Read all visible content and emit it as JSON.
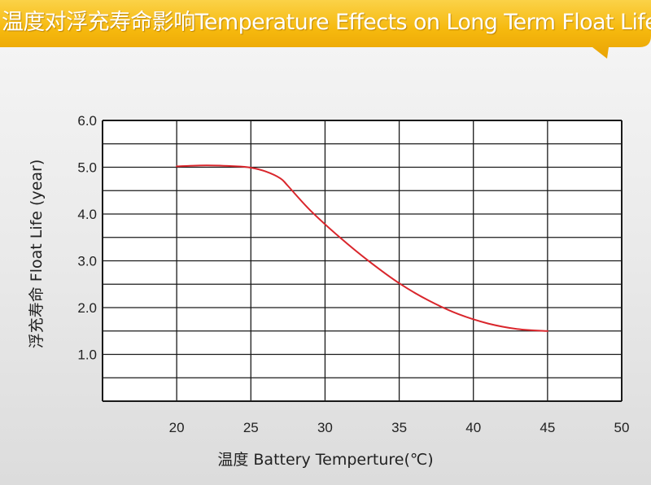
{
  "title": "温度对浮充寿命影响Temperature Effects on Long Term Float Life",
  "colors": {
    "banner": "#f6b90e",
    "line": "#d9262c",
    "grid": "#1a1a1a"
  },
  "chart_data": {
    "type": "line",
    "title": "温度对浮充寿命影响Temperature Effects on Long Term Float Life",
    "xlabel": "温度  Battery  Temperture(℃)",
    "ylabel": "浮充寿命  Float Life (year)",
    "xlim": [
      15,
      50
    ],
    "ylim": [
      0,
      6
    ],
    "x_ticks": [
      "20",
      "25",
      "30",
      "35",
      "40",
      "45",
      "50"
    ],
    "y_ticks": [
      "6.0",
      "5.0",
      "4.0",
      "3.0",
      "2.0",
      "1.0"
    ],
    "grid": true,
    "series": [
      {
        "x": [
          20,
          22,
          24,
          25,
          26,
          27,
          27.5,
          29,
          31,
          33,
          35,
          37,
          39,
          41,
          43,
          45
        ],
        "y": [
          5.02,
          5.04,
          5.02,
          4.99,
          4.91,
          4.76,
          4.6,
          4.08,
          3.5,
          2.98,
          2.52,
          2.15,
          1.86,
          1.66,
          1.54,
          1.5
        ]
      }
    ]
  }
}
